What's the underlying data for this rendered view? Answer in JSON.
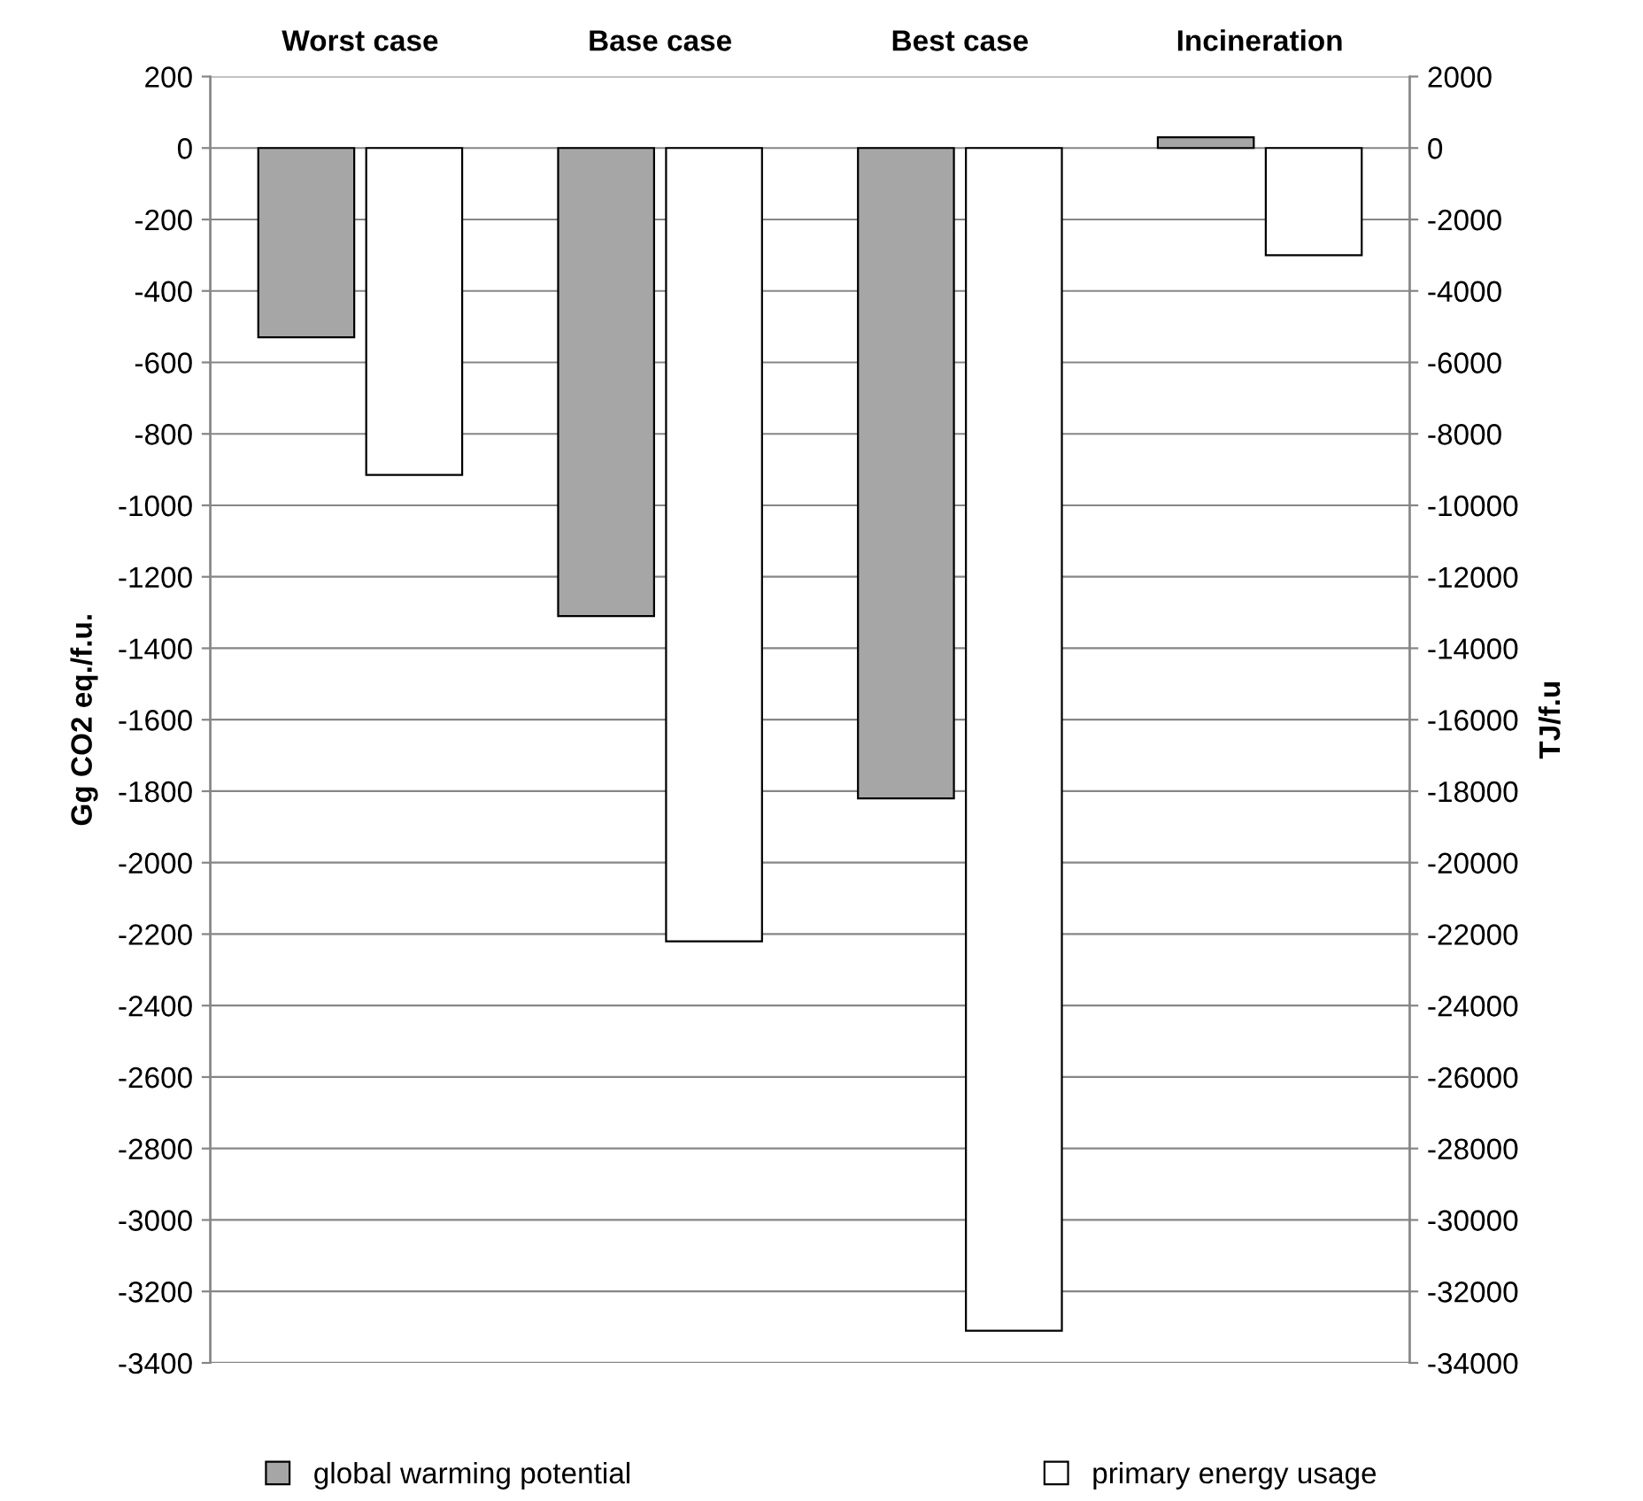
{
  "chart_data": {
    "type": "bar",
    "categories": [
      "Worst case",
      "Base case",
      "Best case",
      "Incineration"
    ],
    "ylabel": "Gg CO2 eq./f.u.",
    "y2label": "TJ/f.u",
    "series": [
      {
        "name": "global warming potential",
        "color": "#a6a6a6",
        "values": [
          -530,
          -1310,
          -1820,
          30
        ]
      },
      {
        "name": "primary energy usage",
        "color": "#ffffff",
        "axis": "y2",
        "values": [
          -9150,
          -22200,
          -33100,
          -3000
        ]
      }
    ],
    "ylim": [
      -3400,
      200
    ],
    "yticks": [
      200,
      0,
      -200,
      -400,
      -600,
      -800,
      -1000,
      -1200,
      -1400,
      -1600,
      -1800,
      -2000,
      -2200,
      -2400,
      -2600,
      -2800,
      -3000,
      -3200,
      -3400
    ],
    "y2lim": [
      -34000,
      2000
    ],
    "y2ticks": [
      2000,
      0,
      -2000,
      -4000,
      -6000,
      -8000,
      -10000,
      -12000,
      -14000,
      -16000,
      -18000,
      -20000,
      -22000,
      -24000,
      -26000,
      -28000,
      -30000,
      -32000,
      -34000
    ],
    "grid": "y",
    "legend": "bottom"
  }
}
